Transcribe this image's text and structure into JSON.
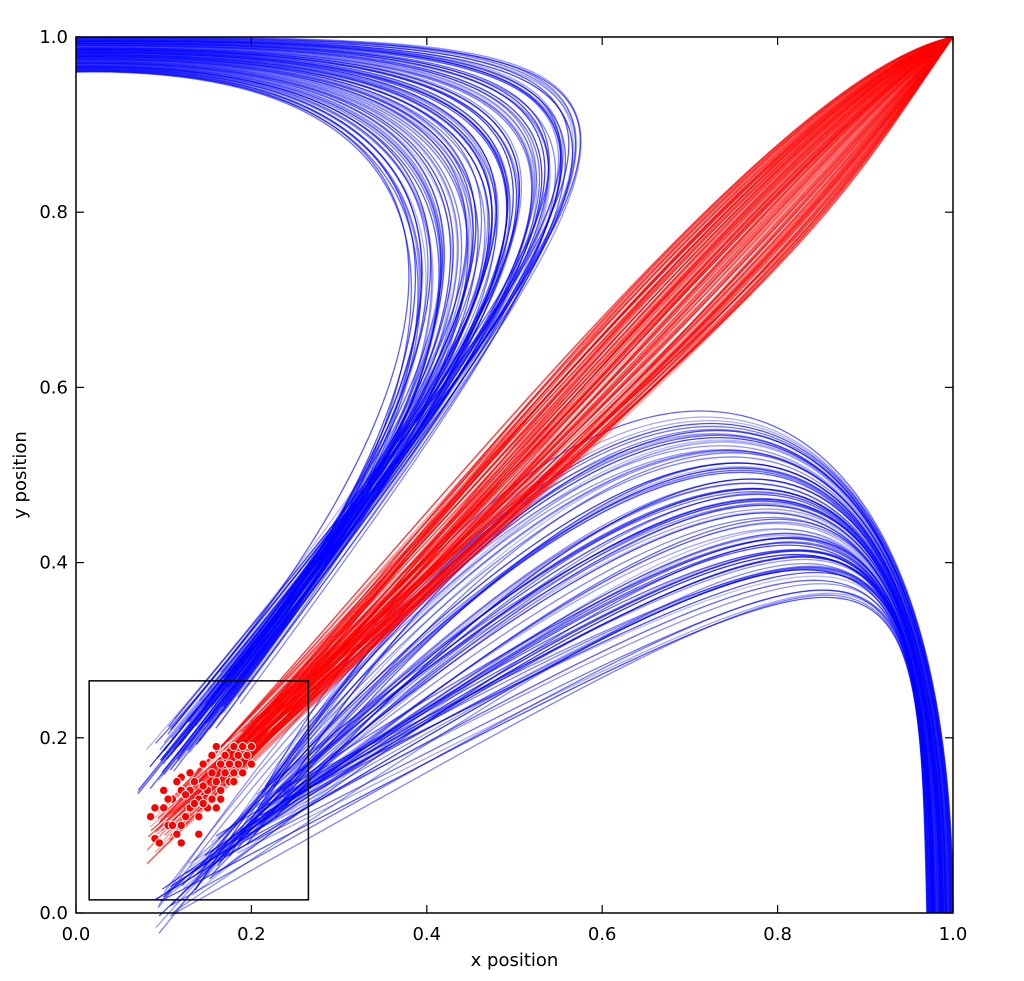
{
  "chart_data": {
    "type": "line",
    "title": "",
    "xlabel": "x position",
    "ylabel": "y position",
    "xlim": [
      0.0,
      1.0
    ],
    "ylim": [
      0.0,
      1.0
    ],
    "x_ticks": [
      "0.0",
      "0.2",
      "0.4",
      "0.6",
      "0.8",
      "1.0"
    ],
    "y_ticks": [
      "0.0",
      "0.2",
      "0.4",
      "0.6",
      "0.8",
      "1.0"
    ],
    "grid": false,
    "legend": "none",
    "colors": {
      "red_series": "#ff0000",
      "blue_series": "#0000ff",
      "start_points": "#ff0000"
    },
    "series": [
      {
        "color": "#ff0000",
        "description_points": [],
        "trajectories_to": [
          1.0,
          1.0
        ],
        "start_region": {
          "x": [
            0.08,
            0.2
          ],
          "y": [
            0.08,
            0.2
          ]
        }
      },
      {
        "color": "#0000ff",
        "trajectories_to": [
          [
            0.0,
            1.0
          ],
          [
            1.0,
            0.0
          ]
        ],
        "start_region": {
          "x": [
            0.07,
            0.25
          ],
          "y": [
            0.07,
            0.2
          ]
        }
      }
    ],
    "start_points": [
      [
        0.09,
        0.085
      ],
      [
        0.095,
        0.08
      ],
      [
        0.1,
        0.12
      ],
      [
        0.105,
        0.1
      ],
      [
        0.11,
        0.13
      ],
      [
        0.115,
        0.09
      ],
      [
        0.12,
        0.14
      ],
      [
        0.125,
        0.11
      ],
      [
        0.13,
        0.16
      ],
      [
        0.135,
        0.15
      ],
      [
        0.14,
        0.13
      ],
      [
        0.145,
        0.17
      ],
      [
        0.15,
        0.12
      ],
      [
        0.155,
        0.16
      ],
      [
        0.16,
        0.19
      ],
      [
        0.165,
        0.14
      ],
      [
        0.17,
        0.18
      ],
      [
        0.175,
        0.15
      ],
      [
        0.18,
        0.19
      ],
      [
        0.185,
        0.17
      ],
      [
        0.19,
        0.16
      ],
      [
        0.195,
        0.18
      ],
      [
        0.1,
        0.14
      ],
      [
        0.11,
        0.1
      ],
      [
        0.12,
        0.1
      ],
      [
        0.13,
        0.12
      ],
      [
        0.14,
        0.11
      ],
      [
        0.15,
        0.14
      ],
      [
        0.16,
        0.15
      ],
      [
        0.17,
        0.16
      ],
      [
        0.18,
        0.15
      ],
      [
        0.12,
        0.155
      ],
      [
        0.13,
        0.14
      ],
      [
        0.145,
        0.145
      ],
      [
        0.155,
        0.18
      ],
      [
        0.165,
        0.17
      ],
      [
        0.085,
        0.11
      ],
      [
        0.09,
        0.12
      ],
      [
        0.105,
        0.13
      ],
      [
        0.115,
        0.15
      ],
      [
        0.125,
        0.135
      ],
      [
        0.135,
        0.125
      ],
      [
        0.145,
        0.125
      ],
      [
        0.155,
        0.13
      ],
      [
        0.165,
        0.13
      ],
      [
        0.175,
        0.17
      ],
      [
        0.185,
        0.18
      ],
      [
        0.19,
        0.19
      ],
      [
        0.2,
        0.17
      ],
      [
        0.2,
        0.19
      ],
      [
        0.12,
        0.08
      ],
      [
        0.14,
        0.09
      ],
      [
        0.16,
        0.12
      ],
      [
        0.18,
        0.16
      ]
    ],
    "inset_box": {
      "x": [
        0.015,
        0.265
      ],
      "y": [
        0.015,
        0.265
      ]
    }
  }
}
